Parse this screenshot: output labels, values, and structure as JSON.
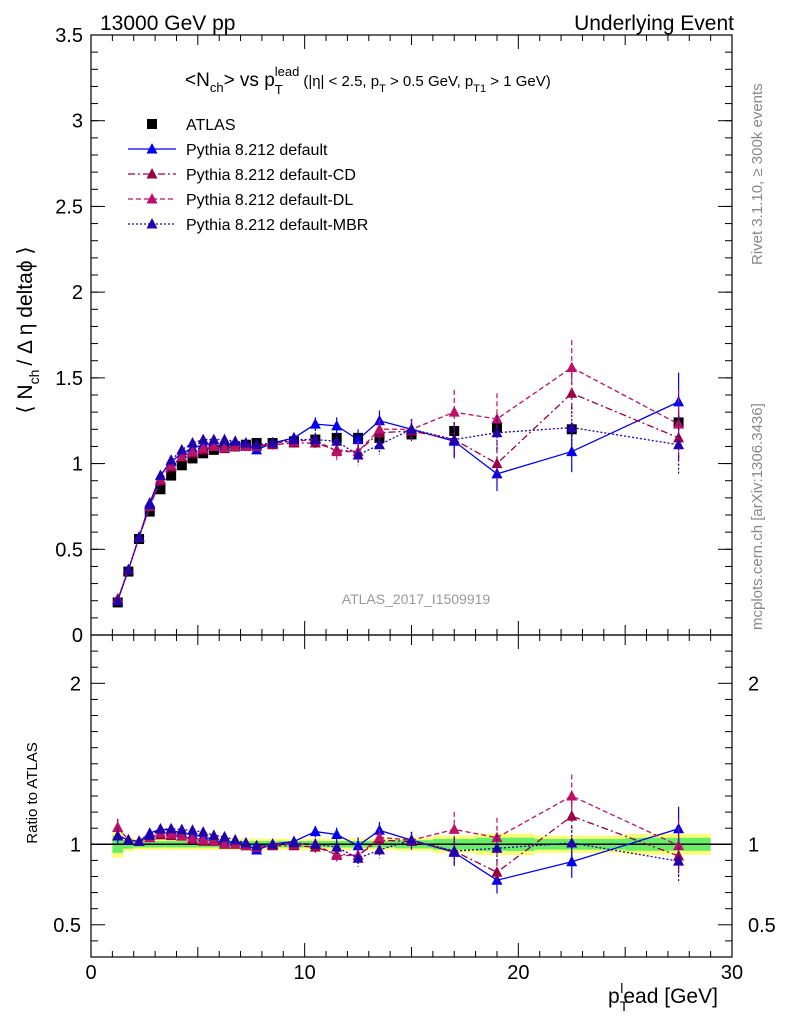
{
  "header": {
    "left": "13000 GeV pp",
    "right": "Underlying Event"
  },
  "side_labels": {
    "rivet": "Rivet 3.1.10, ≥ 300k events",
    "mcplots": "mcplots.cern.ch [arXiv:1306.3436]"
  },
  "watermark": "ATLAS_2017_I1509919",
  "title": {
    "main": "<N",
    "main_sub": "ch",
    "vs": "> vs p",
    "vs_sub": "T",
    "vs_sup": "lead",
    "cuts": "(|η| < 2.5, p",
    "cuts_sub1": "T",
    "cuts_mid": " > 0.5 GeV, p",
    "cuts_sub2": "T1",
    "cuts_end": " > 1 GeV)"
  },
  "ylabel": {
    "pre": "⟨ N",
    "sub": "ch",
    "post": "/ Δ η deltaϕ ⟩"
  },
  "ratio_ylabel": "Ratio to ATLAS",
  "xlabel": {
    "p": "p",
    "sub": "T",
    "sup": "l",
    "rest": "ead [GeV]"
  },
  "legend": [
    {
      "label": "ATLAS"
    },
    {
      "label": "Pythia 8.212 default"
    },
    {
      "label": "Pythia 8.212 default-CD"
    },
    {
      "label": "Pythia 8.212 default-DL"
    },
    {
      "label": "Pythia 8.212 default-MBR"
    }
  ],
  "colors": {
    "atlas": "#000000",
    "default": "#0000ee",
    "cd": "#990044",
    "dl": "#bb1166",
    "mbr": "#2200aa",
    "band_inner": "#66ee66",
    "band_outer": "#ffff77"
  },
  "chart_data": {
    "type": "line",
    "xlim": [
      0,
      30
    ],
    "ylim": [
      0,
      3.5
    ],
    "ratio_ylim": [
      0.3,
      2.3
    ],
    "x_ticks": [
      0,
      10,
      20,
      30
    ],
    "y_ticks": [
      0,
      0.5,
      1,
      1.5,
      2,
      2.5,
      3,
      3.5
    ],
    "ratio_y_ticks": [
      0.5,
      1,
      2
    ],
    "x": [
      1.25,
      1.75,
      2.25,
      2.75,
      3.25,
      3.75,
      4.25,
      4.75,
      5.25,
      5.75,
      6.25,
      6.75,
      7.25,
      7.75,
      8.5,
      9.5,
      10.5,
      11.5,
      12.5,
      13.5,
      15,
      17,
      19,
      22.5,
      27.5
    ],
    "series": [
      {
        "name": "ATLAS",
        "values": [
          0.19,
          0.37,
          0.56,
          0.72,
          0.85,
          0.93,
          0.99,
          1.03,
          1.06,
          1.08,
          1.09,
          1.1,
          1.11,
          1.12,
          1.12,
          1.13,
          1.14,
          1.15,
          1.15,
          1.15,
          1.17,
          1.19,
          1.21,
          1.2,
          1.24
        ],
        "errors": [
          0.01,
          0.01,
          0.01,
          0.01,
          0.01,
          0.01,
          0.01,
          0.01,
          0.01,
          0.01,
          0.01,
          0.01,
          0.01,
          0.01,
          0.01,
          0.01,
          0.02,
          0.02,
          0.02,
          0.02,
          0.03,
          0.04,
          0.05,
          0.04,
          0.05
        ]
      },
      {
        "name": "Pythia 8.212 default",
        "values": [
          0.2,
          0.38,
          0.57,
          0.77,
          0.93,
          1.01,
          1.06,
          1.09,
          1.11,
          1.11,
          1.1,
          1.12,
          1.11,
          1.08,
          1.12,
          1.15,
          1.23,
          1.22,
          1.14,
          1.25,
          1.2,
          1.13,
          0.94,
          1.07,
          1.36
        ],
        "errors": [
          0.01,
          0.01,
          0.01,
          0.01,
          0.01,
          0.01,
          0.01,
          0.01,
          0.01,
          0.02,
          0.02,
          0.02,
          0.02,
          0.02,
          0.03,
          0.03,
          0.04,
          0.05,
          0.06,
          0.06,
          0.06,
          0.1,
          0.1,
          0.12,
          0.17
        ]
      },
      {
        "name": "Pythia 8.212 default-CD",
        "values": [
          0.21,
          0.38,
          0.57,
          0.75,
          0.9,
          0.98,
          1.04,
          1.06,
          1.08,
          1.1,
          1.09,
          1.1,
          1.1,
          1.1,
          1.11,
          1.12,
          1.12,
          1.08,
          1.07,
          1.18,
          1.19,
          1.14,
          1.0,
          1.41,
          1.15
        ],
        "errors": [
          0.01,
          0.01,
          0.01,
          0.01,
          0.01,
          0.01,
          0.01,
          0.01,
          0.01,
          0.02,
          0.02,
          0.02,
          0.02,
          0.02,
          0.03,
          0.03,
          0.04,
          0.05,
          0.06,
          0.06,
          0.06,
          0.1,
          0.1,
          0.12,
          0.17
        ]
      },
      {
        "name": "Pythia 8.212 default-DL",
        "values": [
          0.21,
          0.38,
          0.57,
          0.75,
          0.91,
          0.99,
          1.04,
          1.07,
          1.09,
          1.1,
          1.09,
          1.1,
          1.1,
          1.1,
          1.12,
          1.13,
          1.14,
          1.07,
          1.07,
          1.2,
          1.2,
          1.3,
          1.26,
          1.56,
          1.23
        ],
        "errors": [
          0.01,
          0.01,
          0.01,
          0.01,
          0.01,
          0.01,
          0.01,
          0.01,
          0.01,
          0.02,
          0.02,
          0.02,
          0.02,
          0.02,
          0.03,
          0.03,
          0.04,
          0.05,
          0.06,
          0.06,
          0.06,
          0.13,
          0.15,
          0.16,
          0.2
        ]
      },
      {
        "name": "Pythia 8.212 default-MBR",
        "values": [
          0.2,
          0.38,
          0.57,
          0.76,
          0.93,
          1.02,
          1.08,
          1.12,
          1.14,
          1.14,
          1.14,
          1.13,
          1.12,
          1.11,
          1.12,
          1.14,
          1.14,
          1.13,
          1.05,
          1.11,
          1.2,
          1.14,
          1.18,
          1.21,
          1.11
        ],
        "errors": [
          0.01,
          0.01,
          0.01,
          0.01,
          0.01,
          0.01,
          0.01,
          0.01,
          0.01,
          0.02,
          0.02,
          0.02,
          0.02,
          0.02,
          0.03,
          0.03,
          0.04,
          0.05,
          0.06,
          0.06,
          0.06,
          0.1,
          0.1,
          0.12,
          0.17
        ]
      }
    ]
  }
}
